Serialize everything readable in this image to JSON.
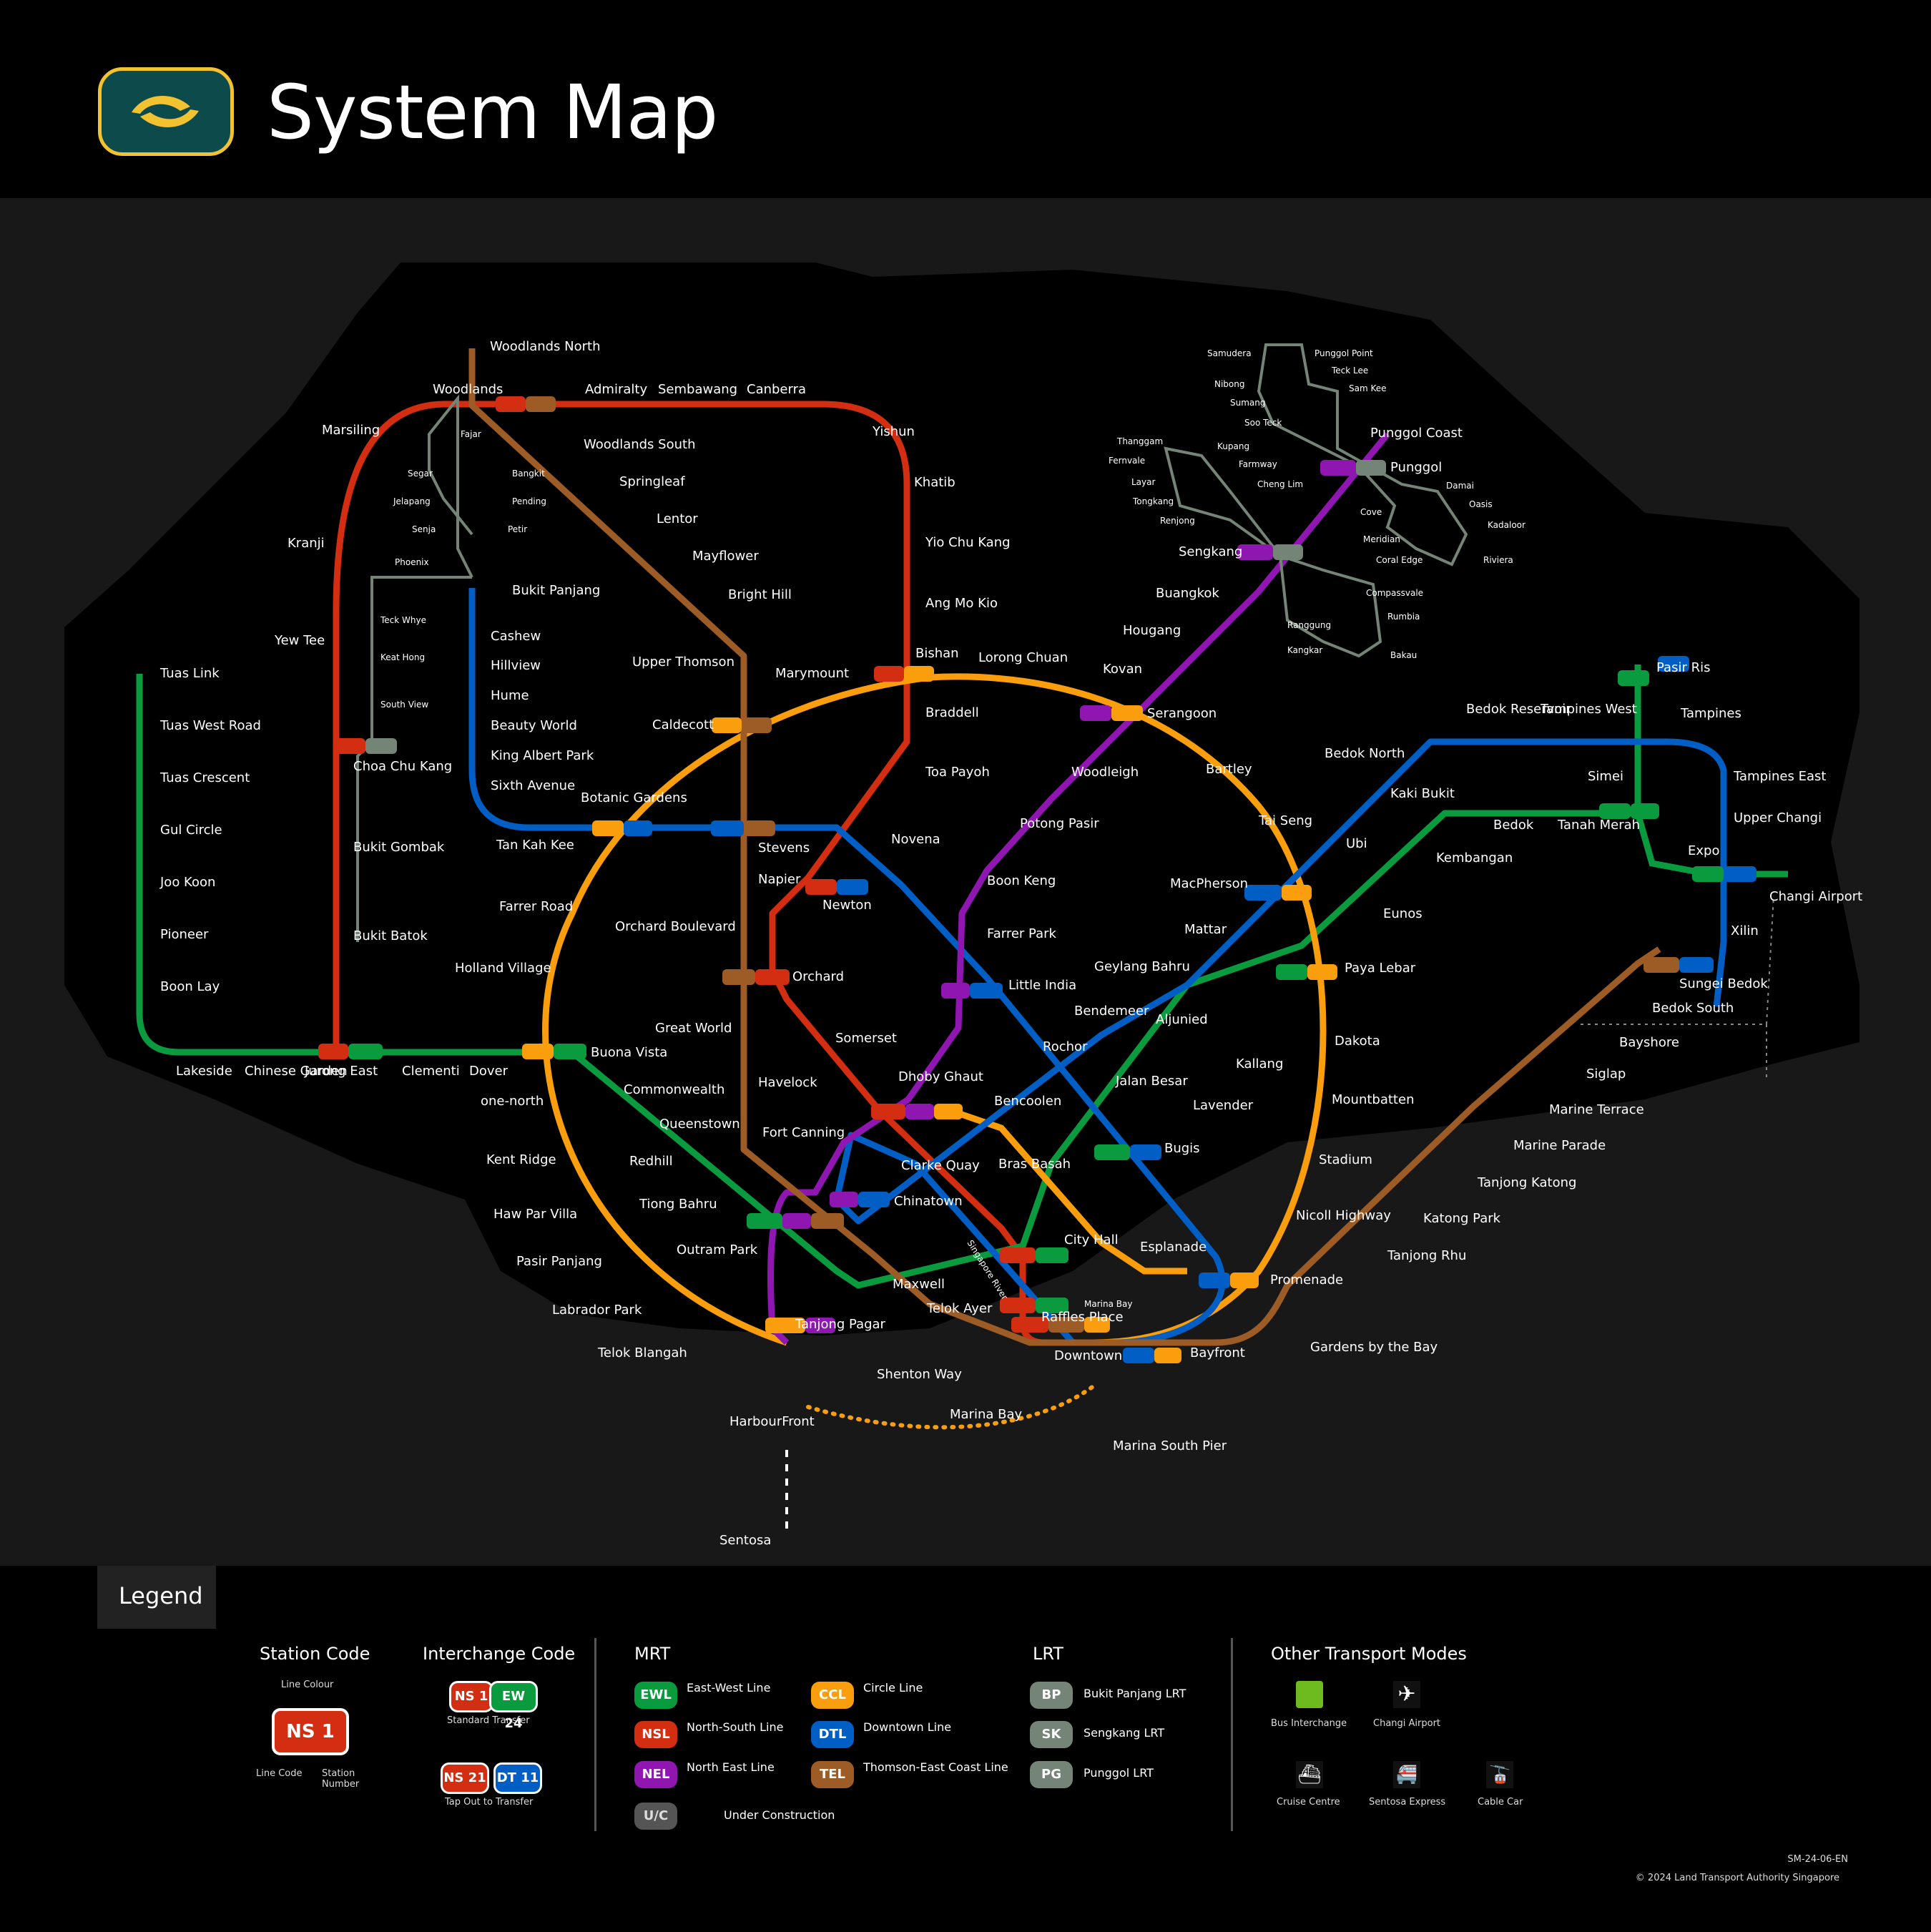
{
  "header": {
    "title": "System Map"
  },
  "legend": {
    "title": "Legend",
    "station_code": {
      "heading": "Station Code",
      "line_colour": "Line Colour",
      "line_code": "Line Code",
      "station_number": "Station Number",
      "sample": "NS 1"
    },
    "interchange_code": {
      "heading": "Interchange Code",
      "standard_transfer": "Standard Transfer",
      "tap_out": "Tap Out to Transfer",
      "std_a": "NS 1",
      "std_b": "EW 24",
      "tap_a": "NS 21",
      "tap_b": "DT 11"
    },
    "mrt": {
      "heading": "MRT",
      "lines": [
        {
          "code": "EWL",
          "name": "East-West Line",
          "color": "#0a9b3e"
        },
        {
          "code": "NSL",
          "name": "North-South Line",
          "color": "#d42e12"
        },
        {
          "code": "NEL",
          "name": "North East Line",
          "color": "#9016b2"
        },
        {
          "code": "CCL",
          "name": "Circle Line",
          "color": "#fa9e0d"
        },
        {
          "code": "DTL",
          "name": "Downtown Line",
          "color": "#005ec4"
        },
        {
          "code": "TEL",
          "name": "Thomson-East Coast Line",
          "color": "#9d5b25"
        }
      ],
      "under_construction": "Under Construction",
      "uc": "U/C"
    },
    "lrt": {
      "heading": "LRT",
      "lines": [
        {
          "code": "BP",
          "name": "Bukit Panjang LRT",
          "color": "#748477"
        },
        {
          "code": "SK",
          "name": "Sengkang LRT",
          "color": "#748477"
        },
        {
          "code": "PG",
          "name": "Punggol LRT",
          "color": "#748477"
        }
      ]
    },
    "other": {
      "heading": "Other Transport Modes",
      "items": [
        "Bus Interchange",
        "Changi Airport",
        "Cruise Centre",
        "Sentosa Express",
        "Cable Car"
      ]
    }
  },
  "footer": {
    "code": "SM-24-06-EN",
    "copyright": "© 2024 Land Transport Authority Singapore"
  },
  "stations": {
    "woodlands_north": "Woodlands North",
    "woodlands": "Woodlands",
    "admiralty": "Admiralty",
    "sembawang": "Sembawang",
    "canberra": "Canberra",
    "yishun": "Yishun",
    "khatib": "Khatib",
    "yio_chu_kang": "Yio Chu Kang",
    "ang_mo_kio": "Ang Mo Kio",
    "bishan": "Bishan",
    "braddell": "Braddell",
    "toa_payoh": "Toa Payoh",
    "novena": "Novena",
    "newton": "Newton",
    "orchard": "Orchard",
    "somerset": "Somerset",
    "dhoby_ghaut": "Dhoby Ghaut",
    "city_hall": "City Hall",
    "raffles_place": "Raffles Place",
    "marina_bay": "Marina Bay",
    "marina_south_pier": "Marina South Pier",
    "marsiling": "Marsiling",
    "kranji": "Kranji",
    "yew_tee": "Yew Tee",
    "choa_chu_kang": "Choa Chu Kang",
    "bukit_gombak": "Bukit Gombak",
    "bukit_batok": "Bukit Batok",
    "jurong_east": "Jurong East",
    "tuas_link": "Tuas Link",
    "tuas_west_road": "Tuas West Road",
    "tuas_crescent": "Tuas Crescent",
    "gul_circle": "Gul Circle",
    "joo_koon": "Joo Koon",
    "pioneer": "Pioneer",
    "boon_lay": "Boon Lay",
    "lakeside": "Lakeside",
    "chinese_garden": "Chinese Garden",
    "clementi": "Clementi",
    "dover": "Dover",
    "buona_vista": "Buona Vista",
    "commonwealth": "Commonwealth",
    "queenstown": "Queenstown",
    "redhill": "Redhill",
    "tiong_bahru": "Tiong Bahru",
    "outram_park": "Outram Park",
    "tanjong_pagar": "Tanjong Pagar",
    "bugis": "Bugis",
    "lavender": "Lavender",
    "kallang": "Kallang",
    "aljunied": "Aljunied",
    "paya_lebar": "Paya Lebar",
    "eunos": "Eunos",
    "kembangan": "Kembangan",
    "bedok": "Bedok",
    "tanah_merah": "Tanah Merah",
    "simei": "Simei",
    "tampines": "Tampines",
    "pasir_ris": "Pasir Ris",
    "expo": "Expo",
    "changi_airport": "Changi Airport",
    "woodlands_south": "Woodlands South",
    "springleaf": "Springleaf",
    "lentor": "Lentor",
    "mayflower": "Mayflower",
    "bright_hill": "Bright Hill",
    "upper_thomson": "Upper Thomson",
    "caldecott": "Caldecott",
    "stevens": "Stevens",
    "napier": "Napier",
    "orchard_boulevard": "Orchard Boulevard",
    "great_world": "Great World",
    "havelock": "Havelock",
    "maxwell": "Maxwell",
    "shenton_way": "Shenton Way",
    "gardens_by_the_bay": "Gardens by the Bay",
    "tanjong_rhu": "Tanjong Rhu",
    "katong_park": "Katong Park",
    "tanjong_katong": "Tanjong Katong",
    "marine_parade": "Marine Parade",
    "marine_terrace": "Marine Terrace",
    "siglap": "Siglap",
    "bayshore": "Bayshore",
    "bedok_south": "Bedok South",
    "sungei_bedok": "Sungei Bedok",
    "bukit_panjang": "Bukit Panjang",
    "cashew": "Cashew",
    "hillview": "Hillview",
    "hume": "Hume",
    "beauty_world": "Beauty World",
    "king_albert_park": "King Albert Park",
    "sixth_avenue": "Sixth Avenue",
    "tan_kah_kee": "Tan Kah Kee",
    "botanic_gardens": "Botanic Gardens",
    "little_india": "Little India",
    "rochor": "Rochor",
    "jalan_besar": "Jalan Besar",
    "bendemeer": "Bendemeer",
    "geylang_bahru": "Geylang Bahru",
    "mattar": "Mattar",
    "macpherson": "MacPherson",
    "ubi": "Ubi",
    "kaki_bukit": "Kaki Bukit",
    "bedok_north": "Bedok North",
    "bedok_reservoir": "Bedok Reservoir",
    "tampines_west": "Tampines West",
    "tampines_east": "Tampines East",
    "upper_changi": "Upper Changi",
    "xilin": "Xilin",
    "bencoolen": "Bencoolen",
    "fort_canning": "Fort Canning",
    "chinatown": "Chinatown",
    "telok_ayer": "Telok Ayer",
    "downtown": "Downtown",
    "bayfront": "Bayfront",
    "promenade": "Promenade",
    "marymount": "Marymount",
    "lorong_chuan": "Lorong Chuan",
    "serangoon": "Serangoon",
    "bartley": "Bartley",
    "tai_seng": "Tai Seng",
    "dakota": "Dakota",
    "mountbatten": "Mountbatten",
    "stadium": "Stadium",
    "nicoll_highway": "Nicoll Highway",
    "esplanade": "Esplanade",
    "bras_basah": "Bras Basah",
    "farrer_road": "Farrer Road",
    "holland_village": "Holland Village",
    "one_north": "one-north",
    "kent_ridge": "Kent Ridge",
    "haw_par_villa": "Haw Par Villa",
    "pasir_panjang": "Pasir Panjang",
    "labrador_park": "Labrador Park",
    "telok_blangah": "Telok Blangah",
    "harbourfront": "HarbourFront",
    "sentosa": "Sentosa",
    "punggol_coast": "Punggol Coast",
    "punggol": "Punggol",
    "sengkang": "Sengkang",
    "buangkok": "Buangkok",
    "hougang": "Hougang",
    "kovan": "Kovan",
    "woodleigh": "Woodleigh",
    "potong_pasir": "Potong Pasir",
    "boon_keng": "Boon Keng",
    "farrer_park": "Farrer Park",
    "clarke_quay": "Clarke Quay",
    "fajar": "Fajar",
    "segar": "Segar",
    "bangkit": "Bangkit",
    "jelapang": "Jelapang",
    "pending": "Pending",
    "senja": "Senja",
    "petir": "Petir",
    "phoenix": "Phoenix",
    "teck_whye": "Teck Whye",
    "keat_hong": "Keat Hong",
    "south_view": "South View",
    "samudera": "Samudera",
    "punggol_point": "Punggol Point",
    "nibong": "Nibong",
    "teck_lee": "Teck Lee",
    "sam_kee": "Sam Kee",
    "sumang": "Sumang",
    "soo_teck": "Soo Teck",
    "damai": "Damai",
    "oasis": "Oasis",
    "kadaloor": "Kadaloor",
    "riviera": "Riviera",
    "coral_edge": "Coral Edge",
    "meridian": "Meridian",
    "cove": "Cove",
    "thanggam": "Thanggam",
    "kupang": "Kupang",
    "fernvale": "Fernvale",
    "farmway": "Farmway",
    "layar": "Layar",
    "cheng_lim": "Cheng Lim",
    "tongkang": "Tongkang",
    "renjong": "Renjong",
    "compassvale": "Compassvale",
    "rumbia": "Rumbia",
    "bakau": "Bakau",
    "kangkar": "Kangkar",
    "ranggung": "Ranggung",
    "uc": "U/C",
    "marina_bay_area": "Marina Bay",
    "singapore_river": "Singapore River"
  }
}
